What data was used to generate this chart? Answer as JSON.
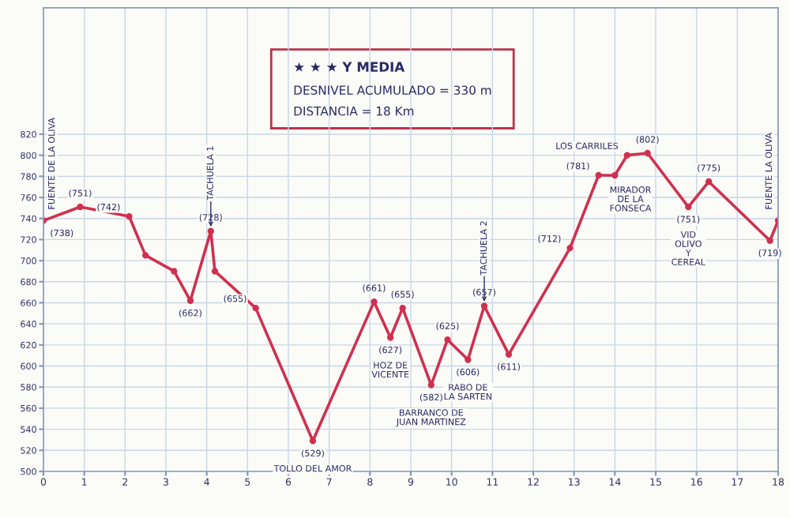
{
  "chart_data": {
    "type": "line",
    "x": [
      0,
      0.9,
      2.1,
      2.5,
      3.2,
      3.6,
      4.1,
      4.2,
      5.2,
      6.6,
      8.1,
      8.5,
      8.8,
      9.5,
      9.9,
      10.4,
      10.8,
      11.4,
      12.9,
      13.6,
      14.0,
      14.3,
      14.8,
      15.8,
      16.3,
      17.8,
      18
    ],
    "series": [
      {
        "color": "#d0304f",
        "values": [
          738,
          751,
          742,
          705,
          690,
          662,
          728,
          690,
          655,
          529,
          661,
          627,
          655,
          582,
          625,
          606,
          657,
          611,
          712,
          781,
          781,
          800,
          802,
          751,
          775,
          719,
          738
        ]
      }
    ],
    "xlim": [
      0,
      18
    ],
    "xticks": [
      0,
      1,
      2,
      3,
      4,
      5,
      6,
      7,
      8,
      9,
      10,
      11,
      12,
      13,
      14,
      15,
      16,
      17,
      18
    ],
    "ylim": [
      500,
      940
    ],
    "yticks": [
      500,
      520,
      540,
      560,
      580,
      600,
      620,
      640,
      660,
      680,
      700,
      720,
      740,
      760,
      780,
      800,
      820
    ],
    "grid": true,
    "marker": "circle",
    "line_style": "solid",
    "annotations": [
      "★ ★ ★ Y MEDIA",
      "DESNIVEL ACUMULADO = 330 m",
      "DISTANCIA = 18 Km",
      {
        "text": "(738)",
        "x": 0,
        "y": 738
      },
      {
        "text": "FUENTE DE LA OLIVA",
        "x": 0,
        "y": 738
      },
      {
        "text": "(751)",
        "x": 0.9,
        "y": 751
      },
      {
        "text": "(742)",
        "x": 2.1,
        "y": 742
      },
      {
        "text": "(662)",
        "x": 3.6,
        "y": 662
      },
      {
        "text": "(728)",
        "x": 4.1,
        "y": 728
      },
      {
        "text": "TACHUELA 1",
        "x": 4.1,
        "y": 728
      },
      {
        "text": "(655)",
        "x": 5.2,
        "y": 655
      },
      {
        "text": "(529)",
        "x": 6.6,
        "y": 529
      },
      {
        "text": "TOLLO DEL AMOR",
        "x": 6.6,
        "y": 529
      },
      {
        "text": "(661)",
        "x": 8.1,
        "y": 661
      },
      {
        "text": "(627)",
        "x": 8.5,
        "y": 627
      },
      {
        "text": "HOZ DE\nVICENTE",
        "x": 8.5,
        "y": 627
      },
      {
        "text": "(655)",
        "x": 8.8,
        "y": 655
      },
      {
        "text": "(582)",
        "x": 9.5,
        "y": 582
      },
      {
        "text": "BARRANCO DE\nJUAN MARTINEZ",
        "x": 9.5,
        "y": 582
      },
      {
        "text": "(625)",
        "x": 9.9,
        "y": 625
      },
      {
        "text": "(606)",
        "x": 10.4,
        "y": 606
      },
      {
        "text": "RABO DE\nLA SARTEN",
        "x": 10.4,
        "y": 606
      },
      {
        "text": "(657)",
        "x": 10.8,
        "y": 657
      },
      {
        "text": "TACHUELA 2",
        "x": 10.8,
        "y": 657
      },
      {
        "text": "(611)",
        "x": 11.4,
        "y": 611
      },
      {
        "text": "(712)",
        "x": 12.9,
        "y": 712
      },
      {
        "text": "(781)",
        "x": 13.6,
        "y": 781
      },
      {
        "text": "MIRADOR\nDE LA\nFONSECA",
        "x": 13.6,
        "y": 781
      },
      {
        "text": "LOS CARRILES",
        "x": 14.3,
        "y": 800
      },
      {
        "text": "(802)",
        "x": 14.8,
        "y": 802
      },
      {
        "text": "(751)",
        "x": 15.8,
        "y": 751
      },
      {
        "text": "VID\nOLIVO\nY\nCEREAL",
        "x": 15.8,
        "y": 751
      },
      {
        "text": "(775)",
        "x": 16.3,
        "y": 775
      },
      {
        "text": "(719)",
        "x": 17.8,
        "y": 719
      },
      {
        "text": "FUENTE LA OLIVA",
        "x": 18,
        "y": 738
      }
    ]
  }
}
